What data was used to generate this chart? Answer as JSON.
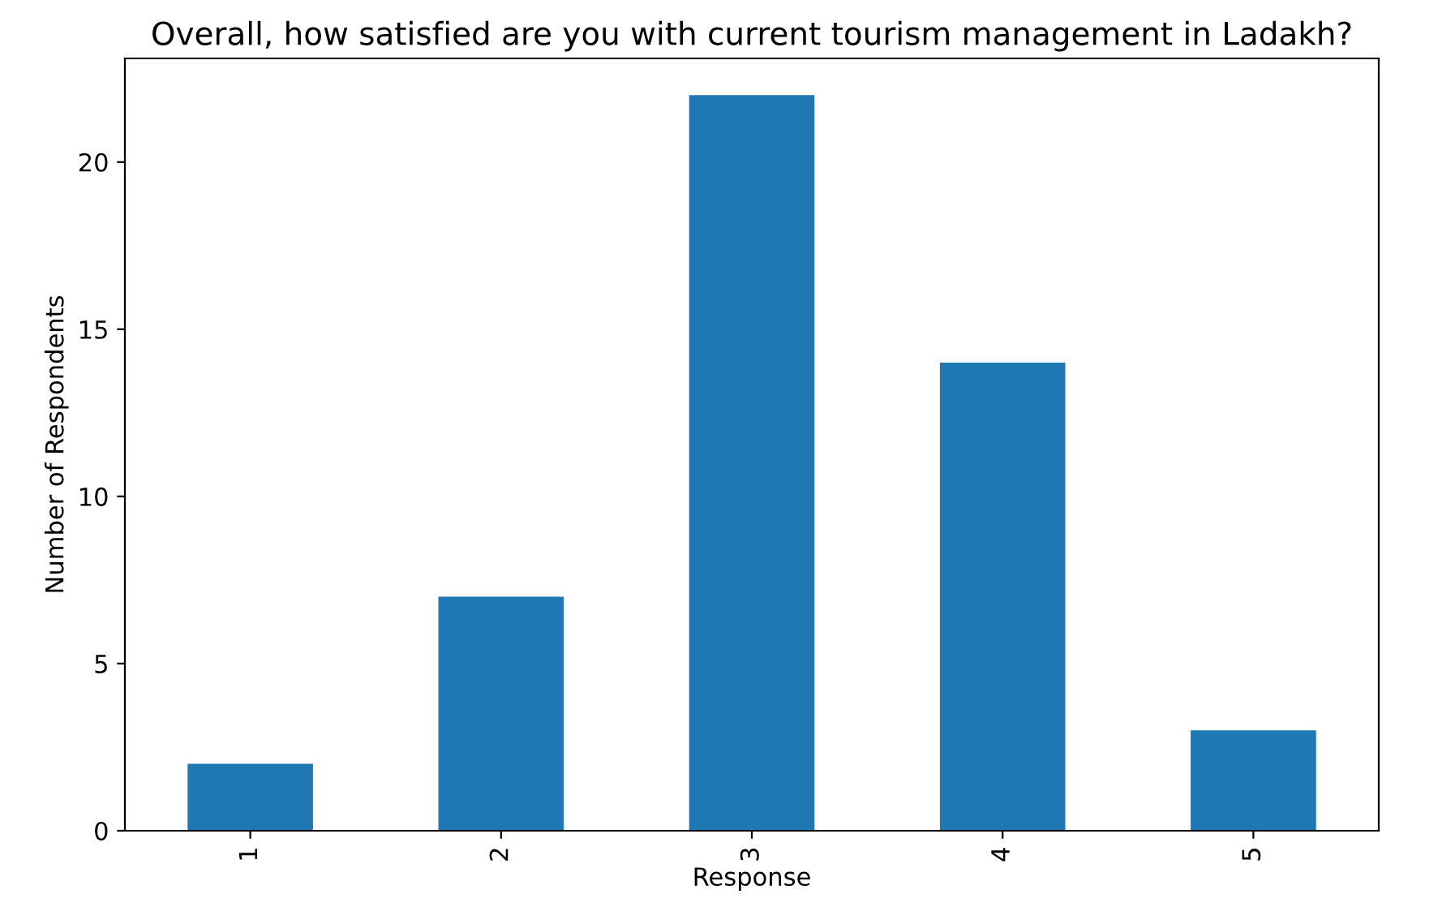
{
  "chart_data": {
    "type": "bar",
    "title": "Overall, how satisfied are you with current tourism management in Ladakh?",
    "xlabel": "Response",
    "ylabel": "Number of Respondents",
    "categories": [
      "1",
      "2",
      "3",
      "4",
      "5"
    ],
    "values": [
      2,
      7,
      22,
      14,
      3
    ],
    "color": "#1f77b4",
    "ylim": [
      0,
      23.1
    ],
    "yticks": [
      0,
      5,
      10,
      15,
      20
    ],
    "grid": false,
    "legend": false
  }
}
